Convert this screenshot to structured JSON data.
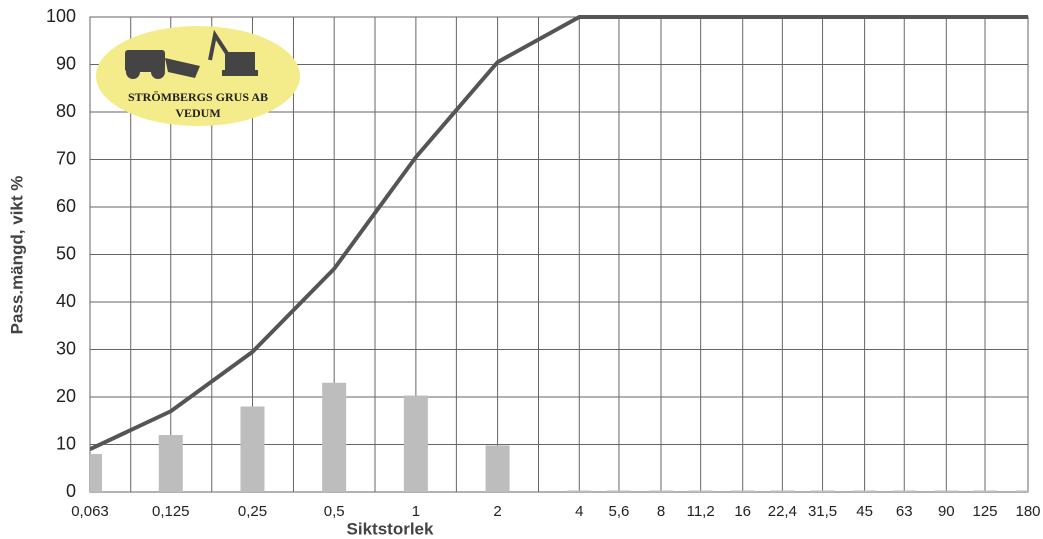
{
  "chart_data": {
    "type": "combo",
    "xlabel": "Siktstorlek",
    "ylabel": "Pass.mängd, vikt %",
    "x": [
      0.063,
      0.125,
      0.25,
      0.5,
      1,
      2,
      4,
      5.6,
      8,
      11.2,
      16,
      22.4,
      31.5,
      45,
      63,
      90,
      125,
      180
    ],
    "xscale": "log",
    "xlim": [
      0.063,
      180
    ],
    "xticks": [
      {
        "value": 0.063,
        "label": "0,063"
      },
      {
        "value": 0.125,
        "label": "0,125"
      },
      {
        "value": 0.25,
        "label": "0,25"
      },
      {
        "value": 0.5,
        "label": "0,5"
      },
      1,
      2,
      4,
      {
        "value": 5.6,
        "label": "5,6"
      },
      8,
      {
        "value": 11.2,
        "label": "11,2"
      },
      16,
      {
        "value": 22.4,
        "label": "22,4"
      },
      {
        "value": 31.5,
        "label": "31,5"
      },
      45,
      63,
      90,
      125,
      180
    ],
    "xminorgrid": [
      0.089,
      0.177,
      0.354,
      0.707,
      1.41,
      2.83
    ],
    "ylim": [
      0,
      100
    ],
    "yticks": [
      0,
      10,
      20,
      30,
      40,
      50,
      60,
      70,
      80,
      90,
      100
    ],
    "grid": true,
    "series": [
      {
        "type": "bar",
        "color": "#bdbdbd",
        "values": [
          8,
          12,
          18,
          23,
          20.3,
          9.8,
          0,
          0,
          0,
          0,
          0,
          0,
          0,
          0,
          0,
          0,
          0,
          0
        ]
      },
      {
        "type": "line",
        "color": "#555555",
        "values": [
          9,
          17,
          29.5,
          47,
          70.5,
          90.5,
          100,
          100,
          100,
          100,
          100,
          100,
          100,
          100,
          100,
          100,
          100,
          100
        ]
      }
    ],
    "logo": {
      "lines": [
        "STRÖMBERGS GRUS AB",
        "VEDUM"
      ]
    }
  }
}
